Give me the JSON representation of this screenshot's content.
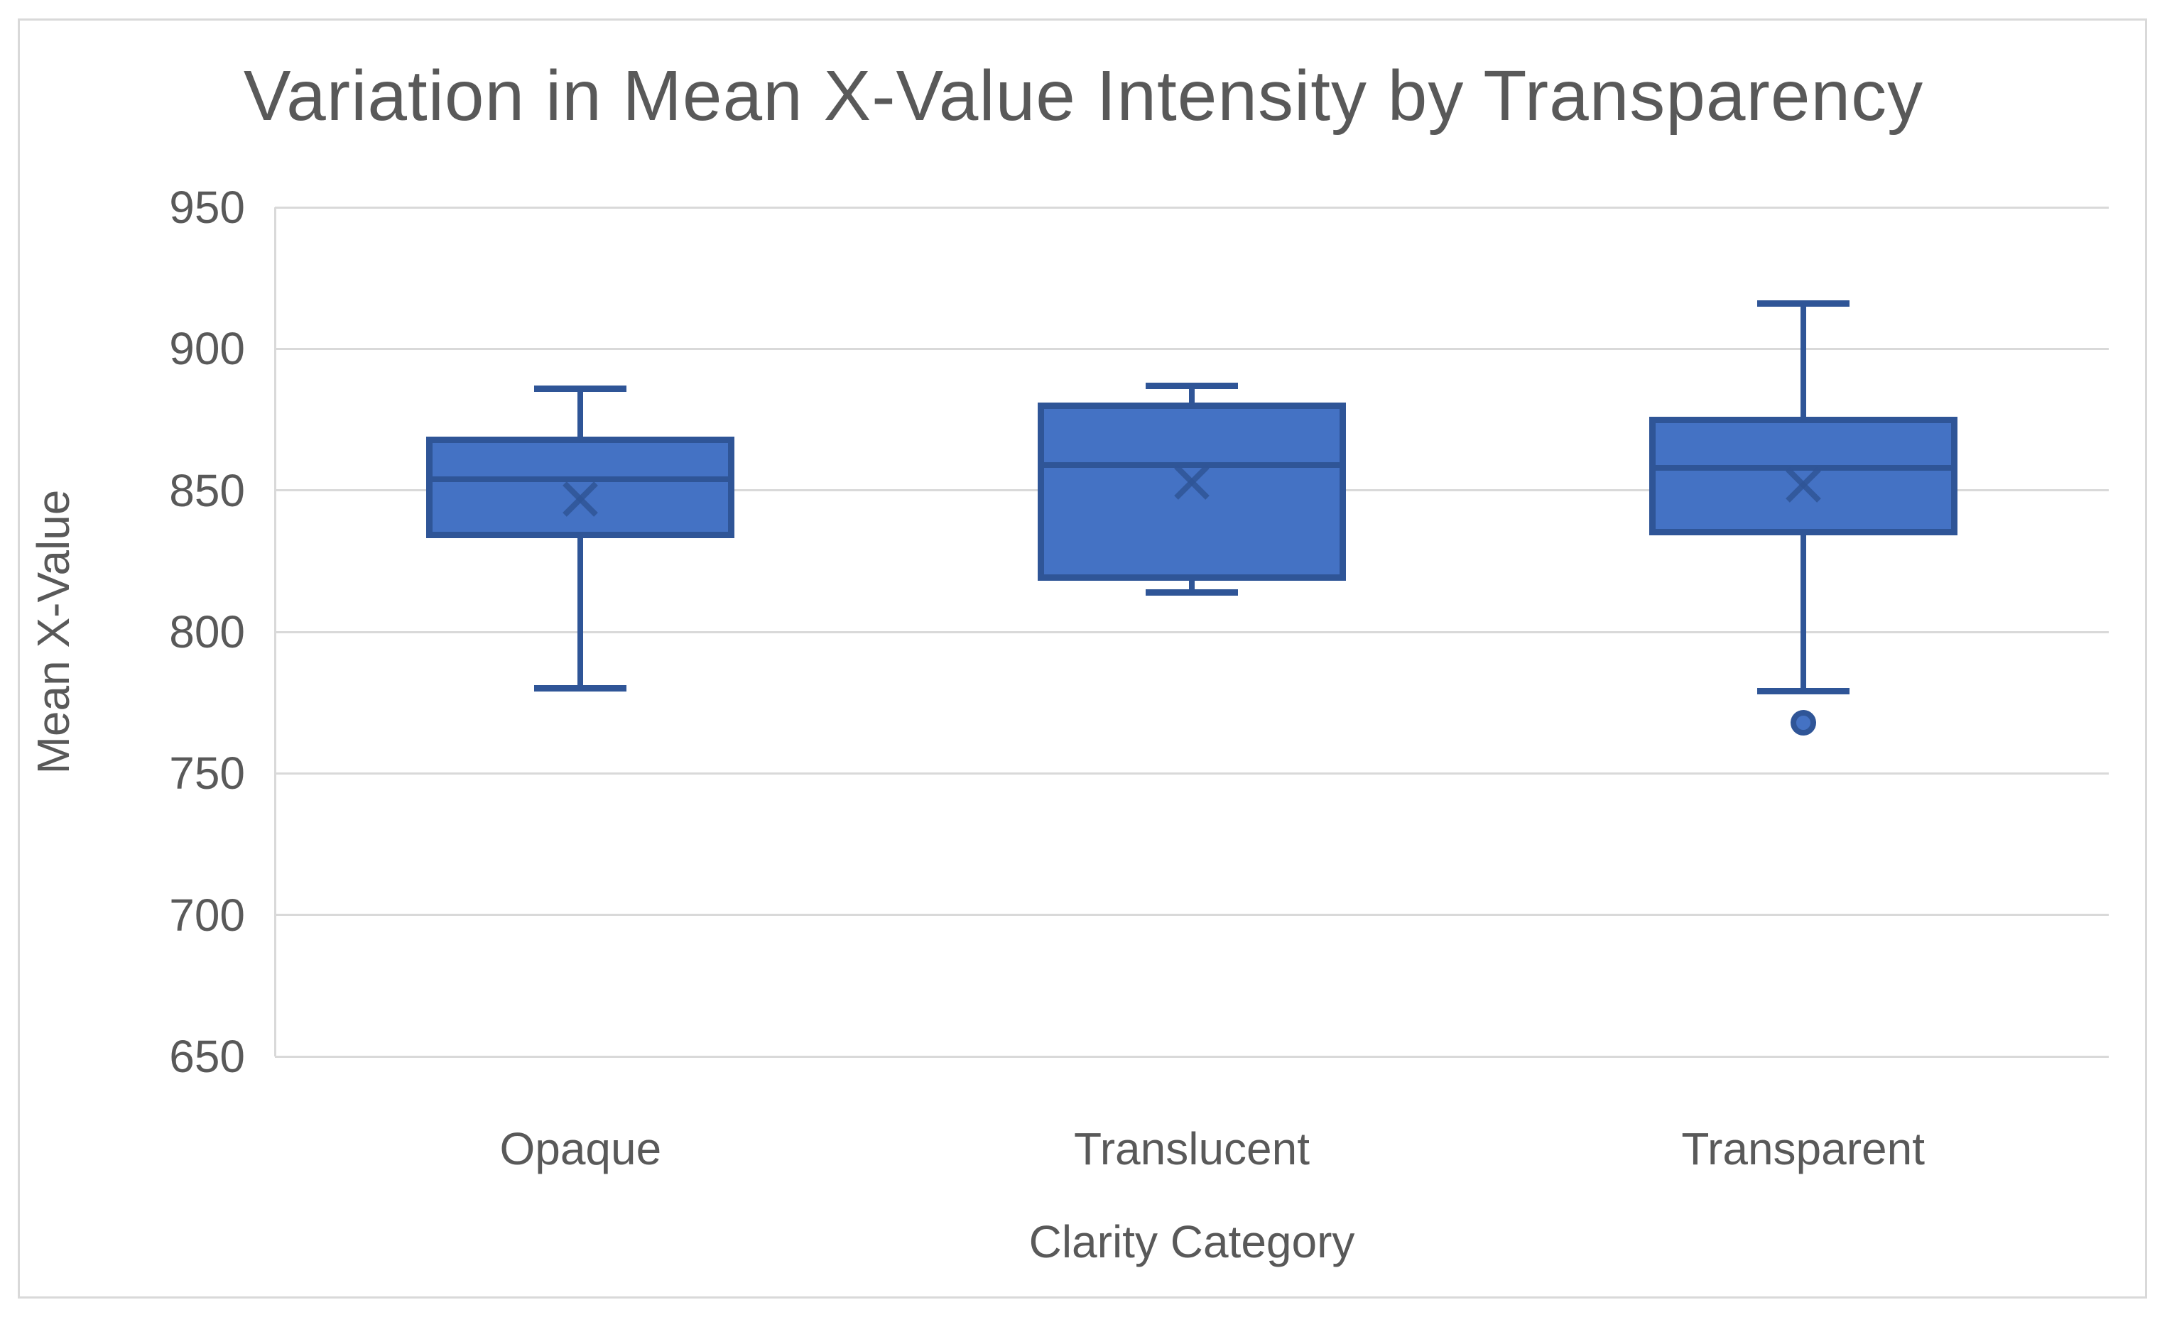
{
  "chart_data": {
    "type": "boxplot",
    "title": "Variation in Mean X-Value Intensity by Transparency",
    "xlabel": "Clarity Category",
    "ylabel": "Mean X-Value",
    "ylim": [
      650,
      950
    ],
    "yticks": [
      950,
      900,
      850,
      800,
      750,
      700,
      650
    ],
    "grid": true,
    "legend": "none",
    "categories": [
      "Opaque",
      "Translucent",
      "Transparent"
    ],
    "series": [
      {
        "category": "Opaque",
        "whisker_min": 780,
        "q1": 833,
        "median": 854,
        "mean": 847,
        "q3": 869,
        "whisker_max": 886,
        "outliers": []
      },
      {
        "category": "Translucent",
        "whisker_min": 814,
        "q1": 818,
        "median": 859,
        "mean": 853,
        "q3": 881,
        "whisker_max": 887,
        "outliers": []
      },
      {
        "category": "Transparent",
        "whisker_min": 779,
        "q1": 834,
        "median": 858,
        "mean": 852,
        "q3": 876,
        "whisker_max": 916,
        "outliers": [
          768
        ]
      }
    ],
    "colors": {
      "box_fill": "#4472C4",
      "box_line": "#2F5597",
      "gridline": "#D9D9D9",
      "axis_line": "#D9D9D9",
      "text": "#595959",
      "background": "#FFFFFF",
      "frame_border": "#D9D9D9"
    }
  }
}
